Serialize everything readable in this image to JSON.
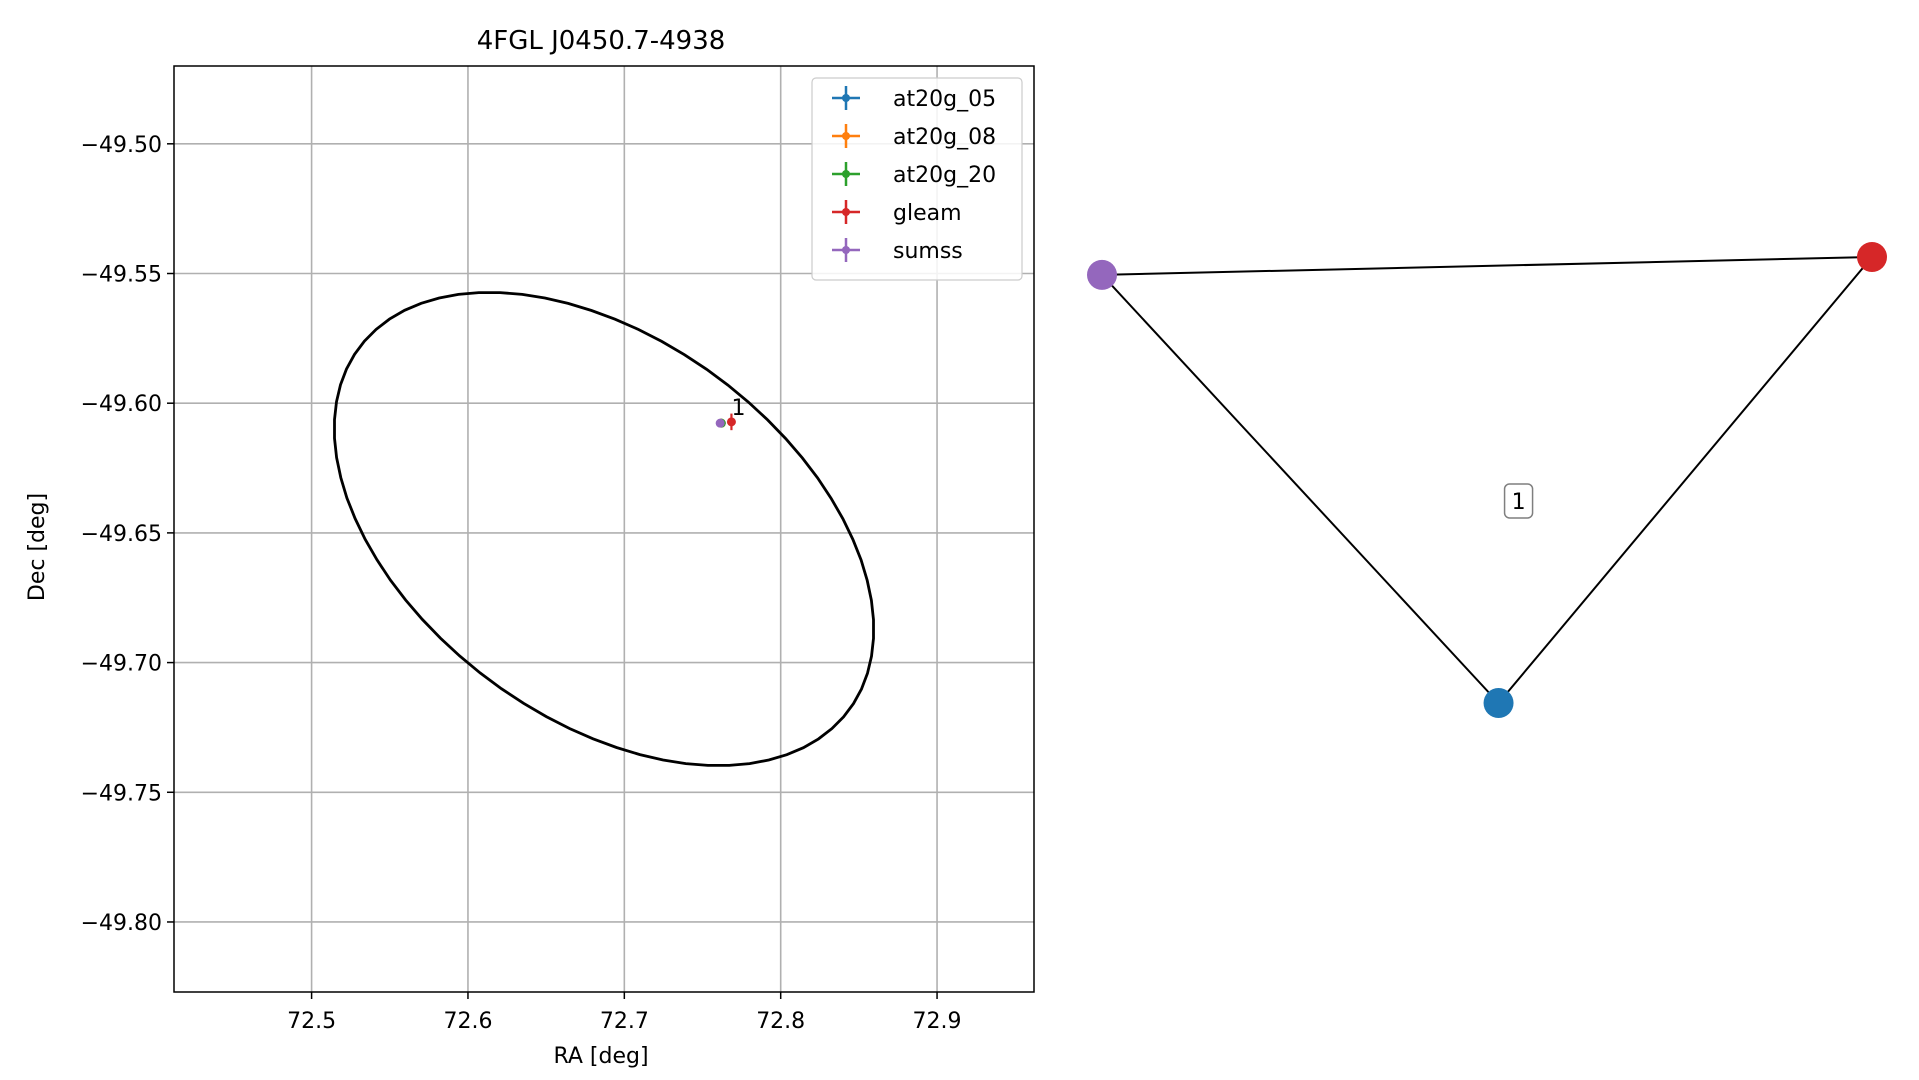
{
  "chart_data": [
    {
      "type": "scatter",
      "title": "4FGL J0450.7-4938",
      "xlabel": "RA [deg]",
      "ylabel": "Dec [deg]",
      "xlim": [
        72.412,
        72.962
      ],
      "ylim": [
        -49.827,
        -49.47
      ],
      "xticks": [
        72.5,
        72.6,
        72.7,
        72.8,
        72.9
      ],
      "xtick_labels": [
        "72.5",
        "72.6",
        "72.7",
        "72.8",
        "72.9"
      ],
      "yticks": [
        -49.5,
        -49.55,
        -49.6,
        -49.65,
        -49.7,
        -49.75,
        -49.8
      ],
      "ytick_labels": [
        "−49.50",
        "−49.55",
        "−49.60",
        "−49.65",
        "−49.70",
        "−49.75",
        "−49.80"
      ],
      "grid": true,
      "legend_position": "top-right",
      "ellipse": {
        "center_ra": 72.687,
        "center_dec": -49.6485,
        "semi_major_deg": 0.178,
        "semi_minor_deg": 0.08,
        "angle_deg": -16,
        "color": "#000000"
      },
      "series": [
        {
          "name": "at20g_05",
          "color": "#1f77b4",
          "points": [
            {
              "ra": 72.762,
              "dec": -49.6077,
              "ra_err": 0.0,
              "dec_err": 0.0
            }
          ]
        },
        {
          "name": "at20g_08",
          "color": "#ff7f0e",
          "points": [
            {
              "ra": 72.762,
              "dec": -49.6077,
              "ra_err": 0.0,
              "dec_err": 0.0
            }
          ]
        },
        {
          "name": "at20g_20",
          "color": "#2ca02c",
          "points": [
            {
              "ra": 72.762,
              "dec": -49.6077,
              "ra_err": 0.0,
              "dec_err": 0.0
            }
          ]
        },
        {
          "name": "gleam",
          "color": "#d62728",
          "points": [
            {
              "ra": 72.7685,
              "dec": -49.6072,
              "ra_err": 0.0015,
              "dec_err": 0.0032
            }
          ]
        },
        {
          "name": "sumss",
          "color": "#9467bd",
          "points": [
            {
              "ra": 72.7613,
              "dec": -49.6077,
              "ra_err": 0.0025,
              "dec_err": 0.0009
            }
          ]
        }
      ],
      "annotations": [
        {
          "text": "1",
          "ra": 72.773,
          "dec": -49.6015
        }
      ]
    },
    {
      "type": "graph",
      "nodes": [
        {
          "id": "sumss",
          "color": "#9467bd",
          "x": 0.0,
          "y": 0.96
        },
        {
          "id": "gleam",
          "color": "#d62728",
          "x": 1.0,
          "y": 1.0
        },
        {
          "id": "at20g",
          "color": "#1f77b4",
          "x": 0.515,
          "y": 0.0
        }
      ],
      "edges": [
        [
          "sumss",
          "gleam"
        ],
        [
          "sumss",
          "at20g"
        ],
        [
          "at20g",
          "gleam"
        ]
      ],
      "label": {
        "text": "1",
        "x": 0.541,
        "y": 0.453
      }
    }
  ]
}
